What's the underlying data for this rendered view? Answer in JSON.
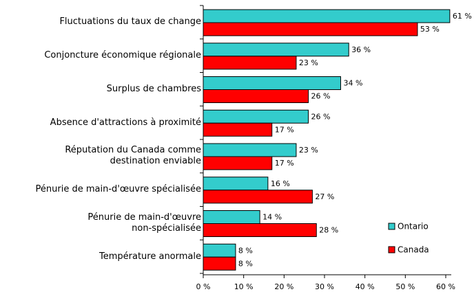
{
  "chart_data": {
    "type": "bar",
    "orientation": "horizontal",
    "categories": [
      "Fluctuations du taux de change",
      "Conjoncture économique régionale",
      "Surplus de chambres ",
      "Absence d'attractions à proximité",
      "Réputation du Canada comme\ndestination enviable",
      "Pénurie de main-d'œuvre spécialisée",
      "Pénurie de main-d'œuvre\nnon-spécialisée",
      "Température anormale"
    ],
    "series": [
      {
        "name": "Ontario",
        "color": "#33cccc",
        "values": [
          61,
          36,
          34,
          26,
          23,
          16,
          14,
          8
        ],
        "value_labels": [
          "61 %",
          "36 %",
          "34 %",
          "26 %",
          "23 %",
          "16 %",
          "14 %",
          "8 %"
        ]
      },
      {
        "name": "Canada",
        "color": "#ff0000",
        "values": [
          53,
          23,
          26,
          17,
          17,
          27,
          28,
          8
        ],
        "value_labels": [
          "53 %",
          "23 %",
          "26 %",
          "17 %",
          "17 %",
          "27 %",
          "28 %",
          "8 %"
        ]
      }
    ],
    "xlim": [
      0,
      60
    ],
    "xticks": [
      {
        "value": 0,
        "label": "0 %"
      },
      {
        "value": 10,
        "label": "10 %"
      },
      {
        "value": 20,
        "label": "20 %"
      },
      {
        "value": 30,
        "label": "30 %"
      },
      {
        "value": 40,
        "label": "40 %"
      },
      {
        "value": 50,
        "label": "50 %"
      },
      {
        "value": 60,
        "label": "60 %"
      }
    ],
    "legend": "right"
  }
}
